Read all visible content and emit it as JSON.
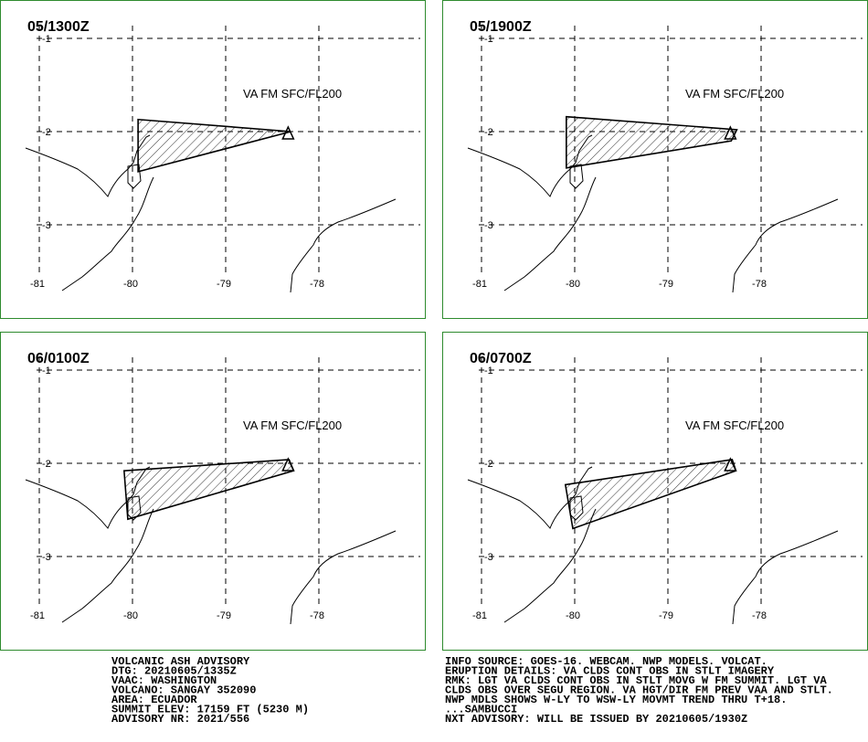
{
  "panels": [
    {
      "title": "05/1300Z",
      "layer": "VA FM SFC/FL200",
      "cloud": [
        [
          -79.94,
          -1.87
        ],
        [
          -78.3,
          -2.0
        ],
        [
          -79.94,
          -2.43
        ]
      ]
    },
    {
      "title": "05/1900Z",
      "layer": "VA FM SFC/FL200",
      "cloud": [
        [
          -80.09,
          -1.84
        ],
        [
          -78.26,
          -1.98
        ],
        [
          -78.32,
          -2.1
        ],
        [
          -80.09,
          -2.39
        ]
      ]
    },
    {
      "title": "06/0100Z",
      "layer": "VA FM SFC/FL200",
      "cloud": [
        [
          -80.09,
          -2.08
        ],
        [
          -78.32,
          -1.96
        ],
        [
          -78.27,
          -2.08
        ],
        [
          -80.05,
          -2.6
        ]
      ]
    },
    {
      "title": "06/0700Z",
      "layer": "VA FM SFC/FL200",
      "cloud": [
        [
          -80.1,
          -2.23
        ],
        [
          -78.31,
          -1.96
        ],
        [
          -78.27,
          -2.08
        ],
        [
          -80.02,
          -2.7
        ]
      ]
    }
  ],
  "lon_ticks": [
    -81,
    -80,
    -79,
    -78
  ],
  "lat_ticks": [
    -1,
    -2,
    -3
  ],
  "volcano": [
    -78.33,
    -2.02
  ],
  "advisory_left": [
    "VOLCANIC ASH ADVISORY",
    "DTG: 20210605/1335Z",
    "VAAC: WASHINGTON",
    "VOLCANO: SANGAY 352090",
    "AREA: ECUADOR",
    "SUMMIT ELEV: 17159 FT (5230 M)",
    "ADVISORY NR: 2021/556"
  ],
  "advisory_right": [
    "INFO SOURCE: GOES-16. WEBCAM. NWP MODELS. VOLCAT.",
    "ERUPTION DETAILS: VA CLDS CONT OBS IN STLT IMAGERY",
    "RMK: LGT VA CLDS CONT OBS IN STLT MOVG W FM SUMMIT. LGT VA",
    "CLDS OBS OVER SEGU REGION. VA HGT/DIR FM PREV VAA AND STLT.",
    "NWP MDLS SHOWS W-LY TO WSW-LY MOVMT TREND THRU T+18.",
    "...SAMBUCCI",
    "NXT ADVISORY: WILL BE ISSUED BY 20210605/1930Z"
  ]
}
